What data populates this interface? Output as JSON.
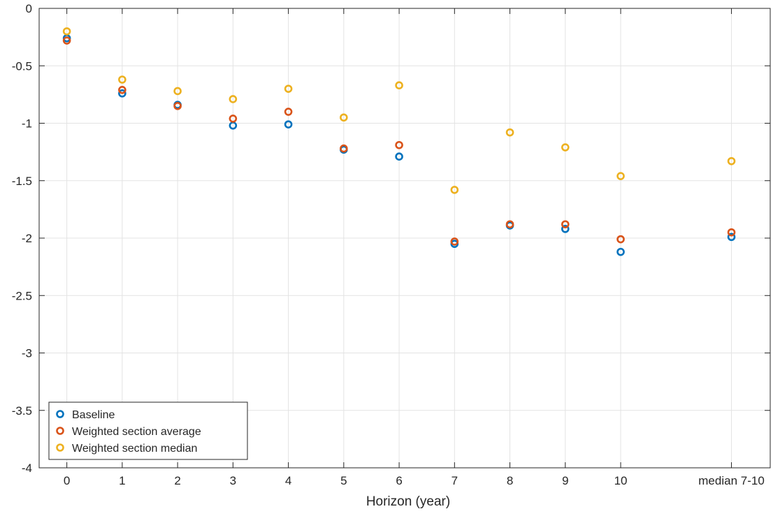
{
  "chart_data": {
    "type": "scatter",
    "title": "",
    "xlabel": "Horizon (year)",
    "ylabel": "",
    "categories": [
      "0",
      "1",
      "2",
      "3",
      "4",
      "5",
      "6",
      "7",
      "8",
      "9",
      "10",
      "median 7-10"
    ],
    "x_positions": [
      0,
      1,
      2,
      3,
      4,
      5,
      6,
      7,
      8,
      9,
      10,
      12
    ],
    "xlim": [
      -0.5,
      12.7
    ],
    "ylim": [
      -4,
      0
    ],
    "yticks": [
      0,
      -0.5,
      -1,
      -1.5,
      -2,
      -2.5,
      -3,
      -3.5,
      -4
    ],
    "ytick_labels": [
      "0",
      "-0.5",
      "-1",
      "-1.5",
      "-2",
      "-2.5",
      "-3",
      "-3.5",
      "-4"
    ],
    "grid": true,
    "legend_placement": "bottom-left",
    "series": [
      {
        "name": "Baseline",
        "color": "#0072BD",
        "values": [
          -0.26,
          -0.74,
          -0.84,
          -1.02,
          -1.01,
          -1.23,
          -1.29,
          -2.05,
          -1.89,
          -1.92,
          -2.12,
          -1.99
        ]
      },
      {
        "name": "Weighted section average",
        "color": "#D95319",
        "values": [
          -0.28,
          -0.71,
          -0.85,
          -0.96,
          -0.9,
          -1.22,
          -1.19,
          -2.03,
          -1.88,
          -1.88,
          -2.01,
          -1.95
        ]
      },
      {
        "name": "Weighted section median",
        "color": "#EDB120",
        "values": [
          -0.2,
          -0.62,
          -0.72,
          -0.79,
          -0.7,
          -0.95,
          -0.67,
          -1.58,
          -1.08,
          -1.21,
          -1.46,
          -1.33
        ]
      }
    ]
  }
}
